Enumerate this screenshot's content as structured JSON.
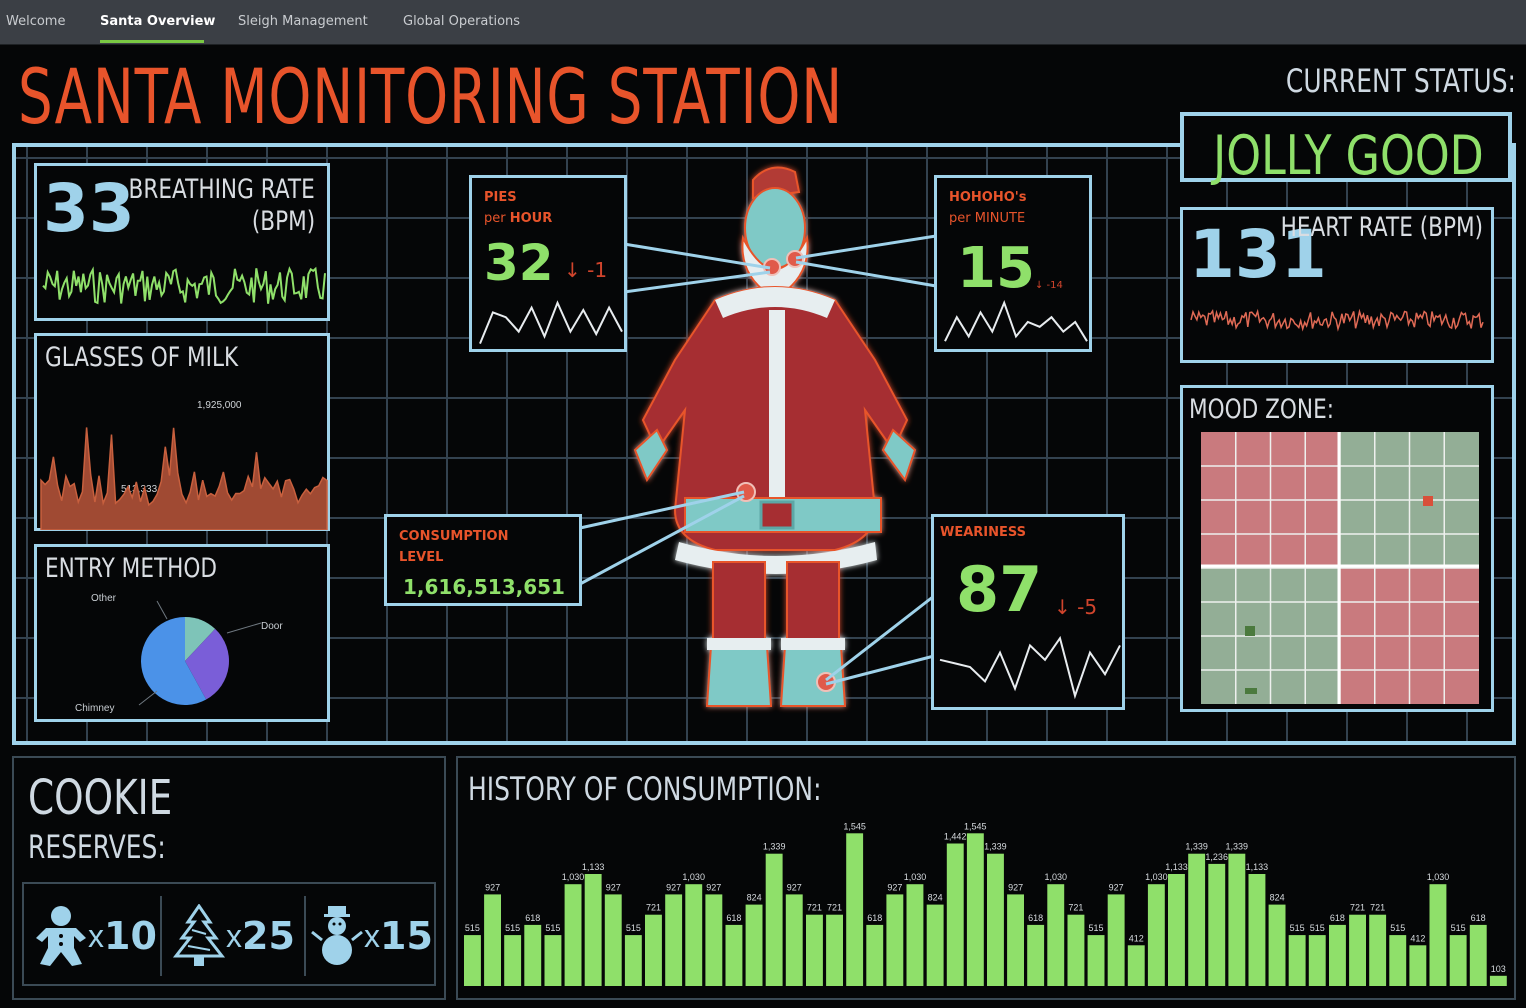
{
  "nav": {
    "tabs": [
      "Welcome",
      "Santa Overview",
      "Sleigh Management",
      "Global Operations"
    ],
    "active": 1
  },
  "title": "SANTA MONITORING STATION",
  "status": {
    "label": "CURRENT STATUS:",
    "value": "JOLLY GOOD"
  },
  "breathing": {
    "value": "33",
    "label_line1": "BREATHING RATE",
    "label_line2": "(BPM)"
  },
  "heart": {
    "value": "131",
    "label": "HEART RATE (BPM)"
  },
  "milk": {
    "label": "GLASSES OF MILK",
    "peak_label": "1,925,000",
    "low_label": "513,333"
  },
  "entry": {
    "label": "ENTRY METHOD",
    "slices": [
      {
        "name": "Other",
        "value": 12
      },
      {
        "name": "Door",
        "value": 30
      },
      {
        "name": "Chimney",
        "value": 58
      }
    ]
  },
  "pies": {
    "label_line1": "PIES",
    "label_line2_pre": "per ",
    "label_line2_b": "HOUR",
    "value": "32",
    "delta": "↓ -1"
  },
  "hohoho": {
    "label_line1": "HOHOHO's",
    "label_line2": "per MINUTE",
    "value": "15",
    "delta": "↓ -14"
  },
  "consumption": {
    "label_line1": "CONSUMPTION",
    "label_line2": "LEVEL",
    "value": "1,616,513,651"
  },
  "weariness": {
    "label": "WEARINESS",
    "value": "87",
    "delta": "↓ -5"
  },
  "mood": {
    "label": "MOOD ZONE:"
  },
  "cookie": {
    "title_line1": "COOKIE",
    "title_line2": "RESERVES:",
    "items": [
      {
        "icon": "gingerbread-man-icon",
        "x": "x",
        "count": "10"
      },
      {
        "icon": "christmas-tree-icon",
        "x": "x",
        "count": "25"
      },
      {
        "icon": "snowman-icon",
        "x": "x",
        "count": "15"
      }
    ]
  },
  "colors": {
    "accent_blue": "#9fd2ea",
    "green": "#8fe06a",
    "red": "#e8542b",
    "grid": "#33424f"
  },
  "chart_data": [
    {
      "type": "bar",
      "title": "HISTORY OF CONSUMPTION:",
      "values": [
        515,
        927,
        515,
        618,
        515,
        1030,
        1133,
        927,
        515,
        721,
        927,
        1030,
        927,
        618,
        824,
        1339,
        927,
        721,
        721,
        1545,
        618,
        927,
        1030,
        824,
        1442,
        1545,
        1339,
        927,
        618,
        1030,
        721,
        515,
        927,
        412,
        1030,
        1133,
        1339,
        1236,
        1339,
        1133,
        824,
        515,
        515,
        618,
        721,
        721,
        515,
        412,
        1030,
        515,
        618,
        103
      ],
      "ylim": [
        0,
        1700
      ]
    }
  ]
}
